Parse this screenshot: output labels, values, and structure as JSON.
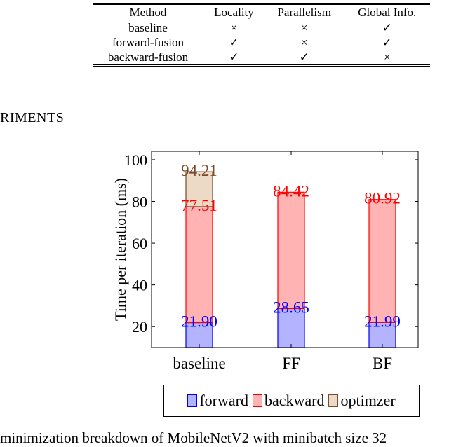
{
  "table": {
    "headers": [
      "Method",
      "Locality",
      "Parallelism",
      "Global Info."
    ],
    "rows": [
      [
        "baseline",
        "×",
        "×",
        "✓"
      ],
      [
        "forward-fusion",
        "✓",
        "×",
        "✓"
      ],
      [
        "backward-fusion",
        "✓",
        "✓",
        "×"
      ]
    ]
  },
  "section": {
    "heading": "RIMENTS"
  },
  "chart_data": {
    "type": "bar",
    "stacked": true,
    "categories": [
      "baseline",
      "FF",
      "BF"
    ],
    "ylabel": "Time per iteration (ms)",
    "ylim": [
      10,
      104
    ],
    "yticks": [
      20,
      40,
      60,
      80,
      100
    ],
    "series": [
      {
        "name": "forward",
        "values": [
          21.9,
          28.65,
          21.99
        ],
        "fill": "#b3b3ff",
        "stroke": "#0000ff",
        "label_color": "#0000ff"
      },
      {
        "name": "backward",
        "values": [
          55.61,
          55.77,
          58.93
        ],
        "fill": "#ffb3b3",
        "stroke": "#ff0000",
        "label_color": "#ff0000"
      },
      {
        "name": "optimzer",
        "values": [
          16.7,
          0,
          0
        ],
        "fill": "#ecd9c6",
        "stroke": "#7a4a2a",
        "label_color": "#7a4a2a"
      }
    ],
    "data_labels": [
      [
        "21.90",
        "28.65",
        "21.99"
      ],
      [
        "77.51",
        "84.42",
        "80.92"
      ],
      [
        "94.21",
        "",
        ""
      ]
    ],
    "legend_position": "bottom"
  },
  "caption": {
    "text": "minimization breakdown of MobileNetV2 with minibatch size 32"
  }
}
